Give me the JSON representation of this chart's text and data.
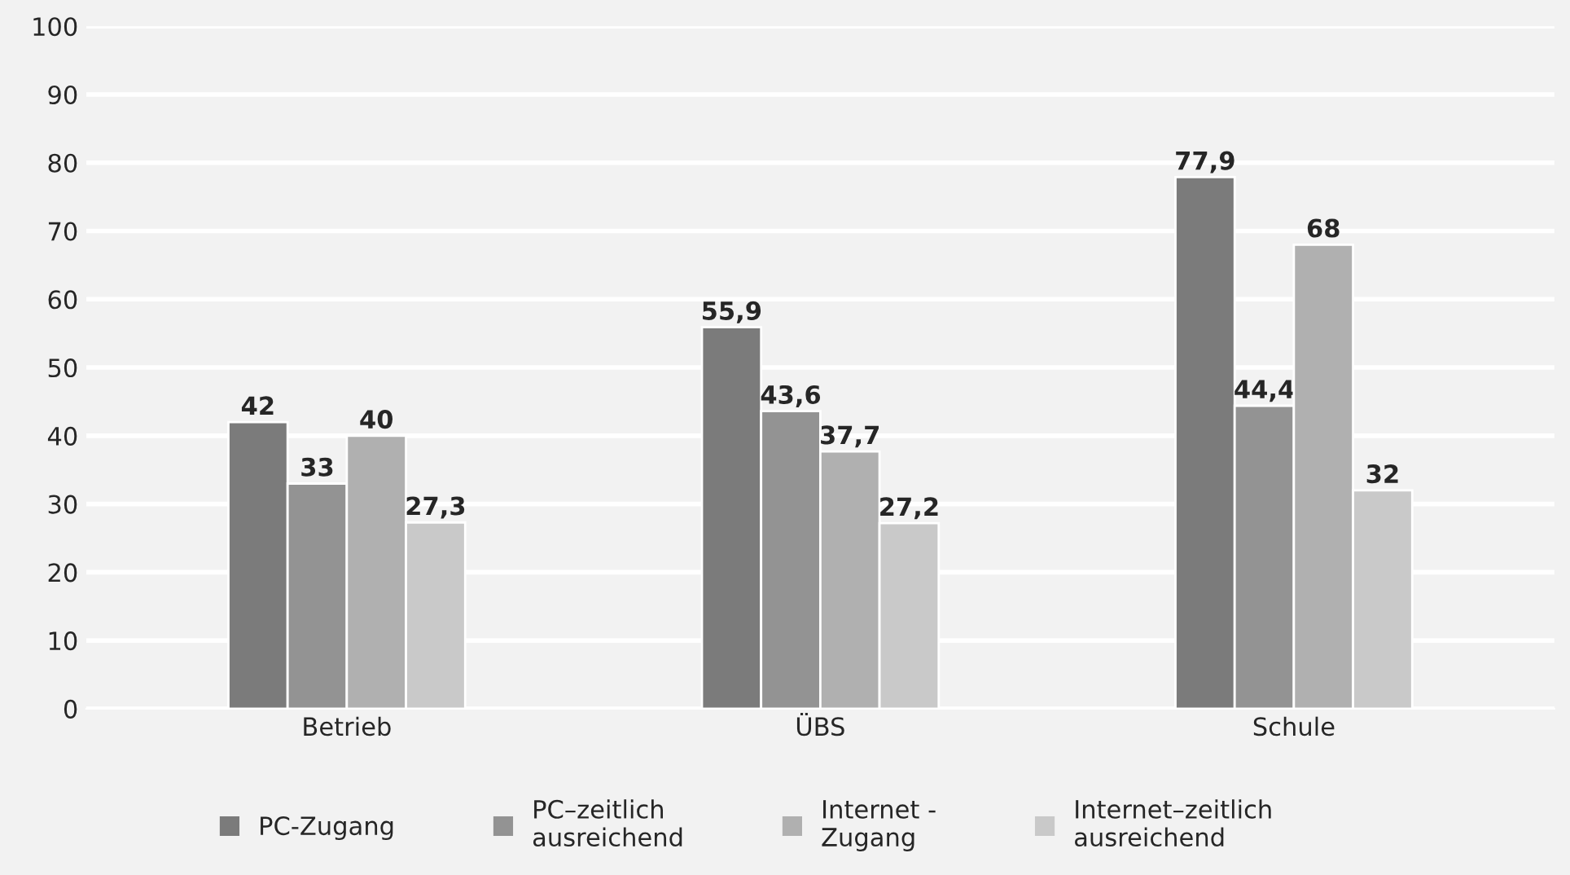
{
  "chart_data": {
    "type": "bar",
    "categories": [
      "Betrieb",
      "ÜBS",
      "Schule"
    ],
    "series": [
      {
        "name": "PC-Zugang",
        "color": "#7b7b7b",
        "values": [
          42,
          55.9,
          77.9
        ],
        "value_labels": [
          "42",
          "55,9",
          "77,9"
        ]
      },
      {
        "name": "PC–zeitlich\nausreichend",
        "color": "#939393",
        "values": [
          33,
          43.6,
          44.4
        ],
        "value_labels": [
          "33",
          "43,6",
          "44,4"
        ]
      },
      {
        "name": "Internet -\nZugang",
        "color": "#b0b0b0",
        "values": [
          40,
          37.7,
          68
        ],
        "value_labels": [
          "40",
          "37,7",
          "68"
        ]
      },
      {
        "name": "Internet–zeitlich\nausreichend",
        "color": "#c9c9c9",
        "values": [
          27.3,
          27.2,
          32
        ],
        "value_labels": [
          "27,3",
          "27,2",
          "32"
        ]
      }
    ],
    "ylim": [
      0,
      100
    ],
    "yticks": [
      0,
      10,
      20,
      30,
      40,
      50,
      60,
      70,
      80,
      90,
      100
    ],
    "grid": "y",
    "legend": "bottom"
  }
}
